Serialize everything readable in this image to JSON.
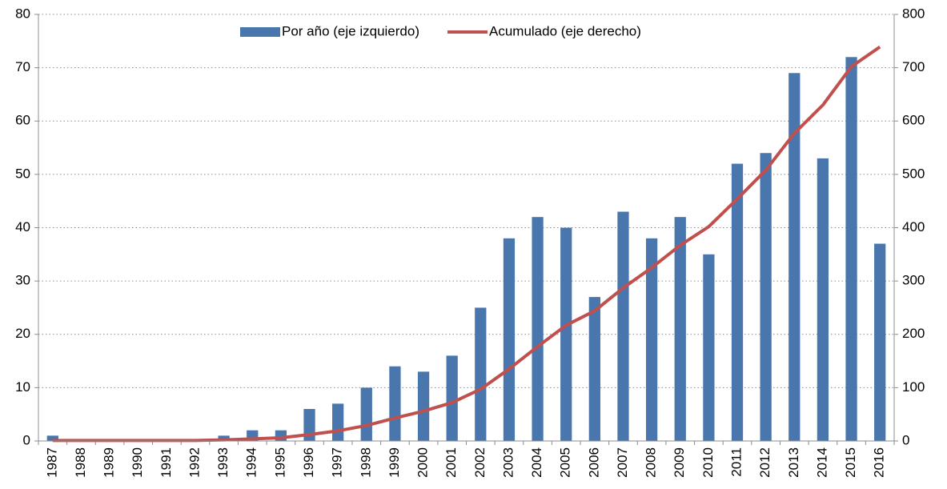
{
  "chart_data": {
    "type": "bar",
    "categories": [
      "1987",
      "1988",
      "1989",
      "1990",
      "1991",
      "1992",
      "1993",
      "1994",
      "1995",
      "1996",
      "1997",
      "1998",
      "1999",
      "2000",
      "2001",
      "2002",
      "2003",
      "2004",
      "2005",
      "2006",
      "2007",
      "2008",
      "2009",
      "2010",
      "2011",
      "2012",
      "2013",
      "2014",
      "2015",
      "2016"
    ],
    "series": [
      {
        "name": "Por año (eje izquierdo)",
        "type": "bar",
        "color": "#4a76ae",
        "values": [
          1,
          0,
          0,
          0,
          0,
          0,
          1,
          2,
          2,
          6,
          7,
          10,
          14,
          13,
          16,
          25,
          38,
          42,
          40,
          27,
          43,
          38,
          42,
          35,
          52,
          54,
          69,
          53,
          72,
          37
        ]
      },
      {
        "name": "Acumulado (eje derecho)",
        "type": "line",
        "axis": "y2",
        "color": "#c0504d",
        "values": [
          1,
          1,
          1,
          1,
          1,
          1,
          2,
          4,
          6,
          12,
          19,
          29,
          43,
          56,
          72,
          97,
          135,
          177,
          217,
          244,
          287,
          325,
          367,
          402,
          454,
          508,
          577,
          630,
          702,
          739
        ]
      }
    ],
    "ylim": [
      0,
      80
    ],
    "yticks": [
      0,
      10,
      20,
      30,
      40,
      50,
      60,
      70,
      80
    ],
    "y2lim": [
      0,
      800
    ],
    "y2ticks": [
      0,
      100,
      200,
      300,
      400,
      500,
      600,
      700,
      800
    ],
    "grid": true,
    "legend": "top"
  }
}
